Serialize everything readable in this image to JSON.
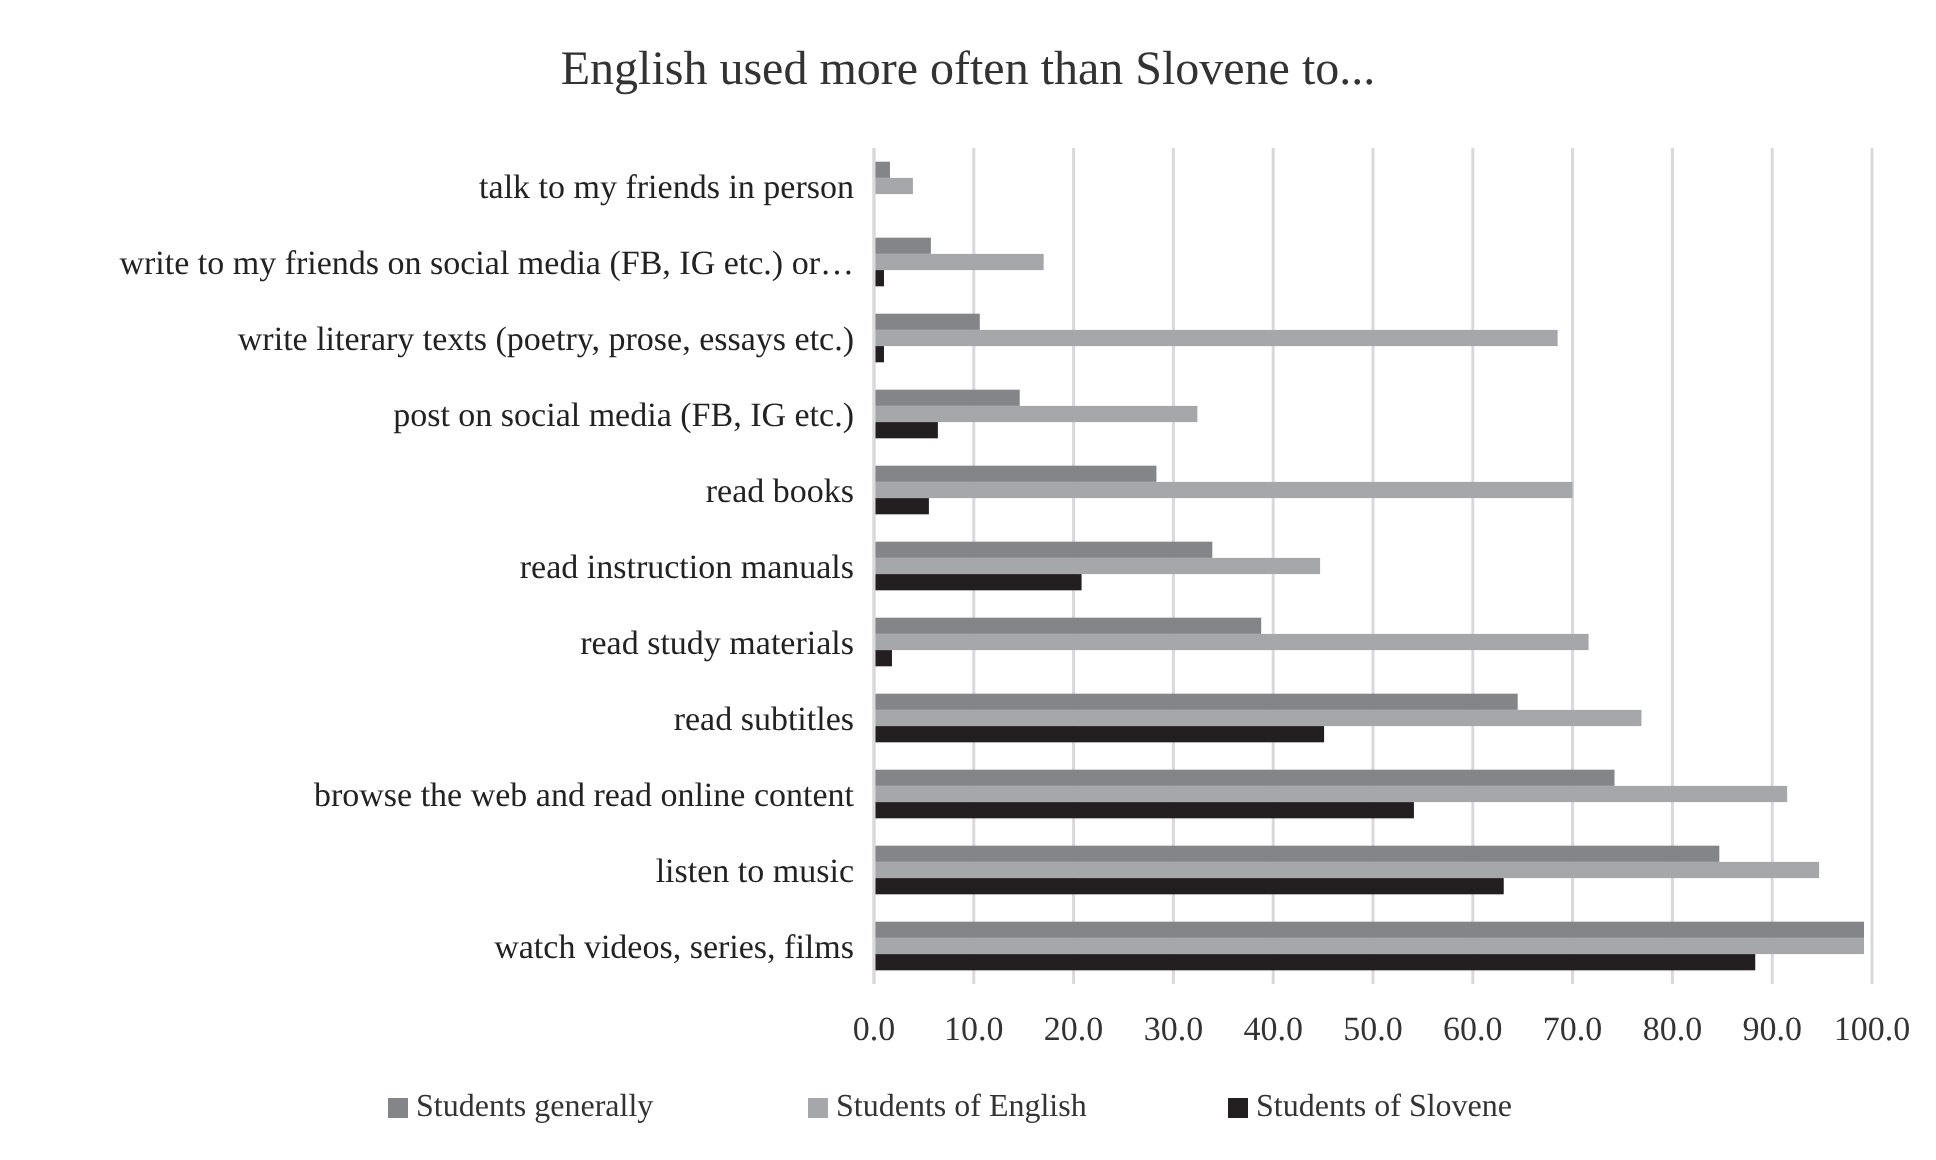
{
  "chart_data": {
    "type": "bar",
    "orientation": "horizontal",
    "title": "English used more often than Slovene to...",
    "categories": [
      "talk to my friends in person",
      "write to my friends on social media (FB, IG etc.) or…",
      "write literary texts (poetry, prose, essays etc.)",
      "post on social media (FB, IG etc.) ",
      "read books",
      "read instruction manuals",
      "read study materials",
      "read subtitles",
      "browse the web and read online content",
      "listen to music",
      "watch videos, series, films"
    ],
    "series": [
      {
        "name": "Students generally",
        "color": "#848589",
        "values": [
          1.6,
          5.7,
          10.6,
          14.6,
          28.3,
          33.9,
          38.8,
          64.5,
          74.2,
          84.7,
          99.2
        ]
      },
      {
        "name": "Students of English",
        "color": "#a6a7ab",
        "values": [
          3.9,
          17.0,
          68.5,
          32.4,
          70.0,
          44.7,
          71.6,
          76.9,
          91.5,
          94.7,
          99.2
        ]
      },
      {
        "name": "Students of Slovene",
        "color": "#231f20",
        "values": [
          0,
          1.0,
          1.0,
          6.4,
          5.5,
          20.8,
          1.8,
          45.1,
          54.1,
          63.1,
          88.3
        ]
      }
    ],
    "xlim": [
      0,
      100
    ],
    "xticks": [
      {
        "value": 0,
        "label": "0.0"
      },
      {
        "value": 10,
        "label": "10.0"
      },
      {
        "value": 20,
        "label": "20.0"
      },
      {
        "value": 30,
        "label": "30.0"
      },
      {
        "value": 40,
        "label": "40.0"
      },
      {
        "value": 50,
        "label": "50.0"
      },
      {
        "value": 60,
        "label": "60.0"
      },
      {
        "value": 70,
        "label": "70.0"
      },
      {
        "value": 80,
        "label": "80.0"
      },
      {
        "value": 90,
        "label": "90.0"
      },
      {
        "value": 100,
        "label": "100.0"
      }
    ],
    "grid": "x",
    "legend": "bottom"
  }
}
